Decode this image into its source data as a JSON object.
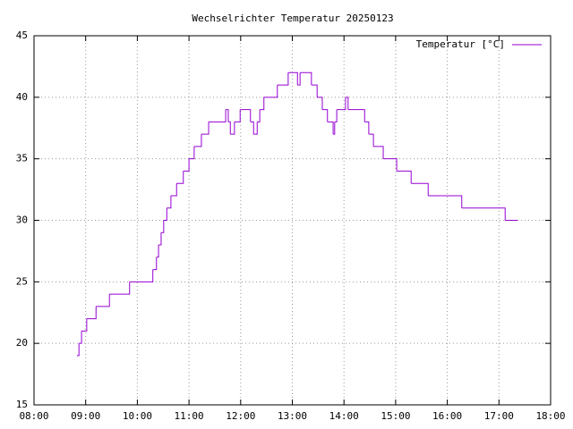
{
  "chart_data": {
    "type": "line",
    "steps": true,
    "title": "Wechselrichter Temperatur 20250123",
    "x": [
      8.83,
      8.87,
      8.92,
      9.02,
      9.2,
      9.46,
      9.85,
      10.3,
      10.37,
      10.41,
      10.46,
      10.51,
      10.57,
      10.65,
      10.76,
      10.89,
      11,
      11.1,
      11.24,
      11.38,
      11.71,
      11.76,
      11.8,
      11.88,
      11.99,
      12.19,
      12.25,
      12.32,
      12.37,
      12.45,
      12.71,
      12.92,
      13.1,
      13.15,
      13.37,
      13.48,
      13.58,
      13.68,
      13.79,
      13.82,
      13.86,
      14.03,
      14.08,
      14.4,
      14.48,
      14.57,
      14.76,
      15.02,
      15.3,
      15.63,
      16.28,
      17.12,
      17.36
    ],
    "series": [
      {
        "name": "Temperatur [°C]",
        "color": "#9400d3",
        "values": [
          19,
          20,
          21,
          22,
          23,
          24,
          25,
          26,
          27,
          28,
          29,
          30,
          31,
          32,
          33,
          34,
          35,
          36,
          37,
          38,
          39,
          38,
          37,
          38,
          39,
          38,
          37,
          38,
          39,
          40,
          41,
          42,
          41,
          42,
          41,
          40,
          39,
          38,
          37,
          38,
          39,
          40,
          39,
          38,
          37,
          36,
          35,
          34,
          33,
          32,
          31,
          30,
          30
        ]
      }
    ],
    "xlim": [
      8,
      18
    ],
    "xticks": [
      {
        "value": 8,
        "label": "08:00"
      },
      {
        "value": 9,
        "label": "09:00"
      },
      {
        "value": 10,
        "label": "10:00"
      },
      {
        "value": 11,
        "label": "11:00"
      },
      {
        "value": 12,
        "label": "12:00"
      },
      {
        "value": 13,
        "label": "13:00"
      },
      {
        "value": 14,
        "label": "14:00"
      },
      {
        "value": 15,
        "label": "15:00"
      },
      {
        "value": 16,
        "label": "16:00"
      },
      {
        "value": 17,
        "label": "17:00"
      },
      {
        "value": 18,
        "label": "18:00"
      }
    ],
    "ylim": [
      15,
      45
    ],
    "yticks": [
      15,
      20,
      25,
      30,
      35,
      40,
      45
    ],
    "grid": true,
    "legend": "top-right"
  }
}
